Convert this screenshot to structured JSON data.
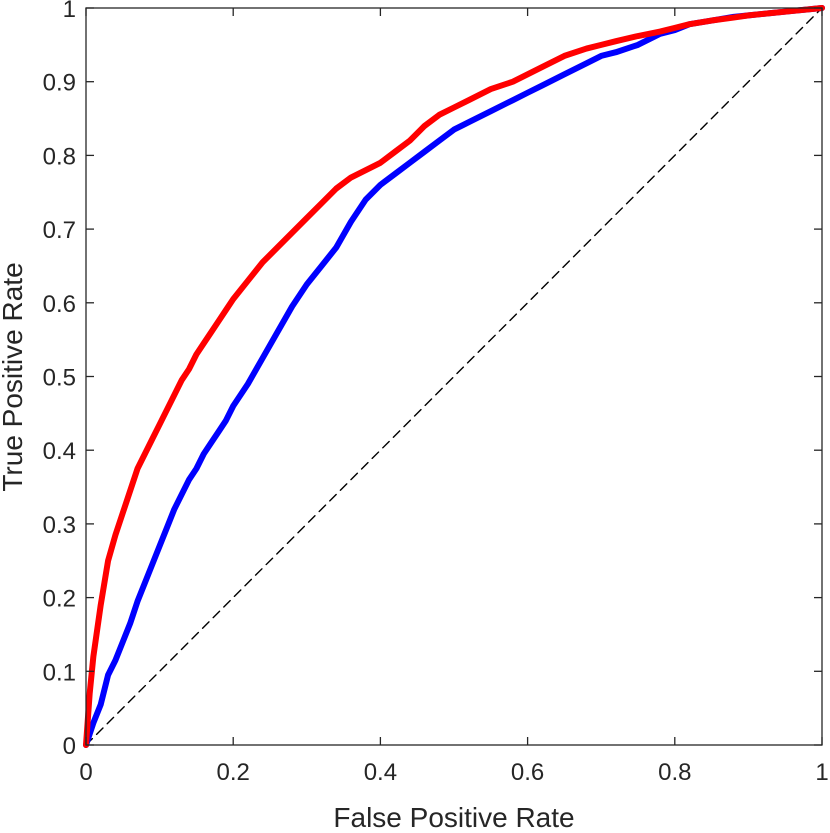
{
  "chart_data": {
    "type": "line",
    "title": "",
    "xlabel": "False Positive Rate",
    "ylabel": "True Positive Rate",
    "xlim": [
      0,
      1
    ],
    "ylim": [
      0,
      1
    ],
    "grid": false,
    "legend": "none",
    "x_ticks": [
      0,
      0.2,
      0.4,
      0.6,
      0.8,
      1
    ],
    "x_tick_labels": [
      "0",
      "0.2",
      "0.4",
      "0.6",
      "0.8",
      "1"
    ],
    "y_ticks": [
      0,
      0.1,
      0.2,
      0.3,
      0.4,
      0.5,
      0.6,
      0.7,
      0.8,
      0.9,
      1
    ],
    "y_tick_labels": [
      "0",
      "0.1",
      "0.2",
      "0.3",
      "0.4",
      "0.5",
      "0.6",
      "0.7",
      "0.8",
      "0.9",
      "1"
    ],
    "series": [
      {
        "name": "Blue ROC curve",
        "color": "#0000ff",
        "style": "solid",
        "x": [
          0,
          0.01,
          0.02,
          0.03,
          0.04,
          0.05,
          0.06,
          0.07,
          0.08,
          0.09,
          0.1,
          0.11,
          0.12,
          0.13,
          0.14,
          0.15,
          0.16,
          0.17,
          0.18,
          0.19,
          0.2,
          0.22,
          0.24,
          0.26,
          0.28,
          0.3,
          0.32,
          0.34,
          0.36,
          0.38,
          0.4,
          0.42,
          0.44,
          0.46,
          0.48,
          0.5,
          0.52,
          0.55,
          0.58,
          0.6,
          0.62,
          0.65,
          0.68,
          0.7,
          0.72,
          0.75,
          0.78,
          0.8,
          0.82,
          0.85,
          0.88,
          0.9,
          0.93,
          0.96,
          1.0
        ],
        "y": [
          0,
          0.03,
          0.055,
          0.095,
          0.115,
          0.14,
          0.165,
          0.195,
          0.22,
          0.245,
          0.27,
          0.295,
          0.32,
          0.34,
          0.36,
          0.375,
          0.395,
          0.41,
          0.425,
          0.44,
          0.46,
          0.49,
          0.525,
          0.56,
          0.595,
          0.625,
          0.65,
          0.675,
          0.71,
          0.74,
          0.76,
          0.775,
          0.79,
          0.805,
          0.82,
          0.835,
          0.845,
          0.86,
          0.875,
          0.885,
          0.895,
          0.91,
          0.925,
          0.935,
          0.94,
          0.95,
          0.965,
          0.97,
          0.978,
          0.983,
          0.988,
          0.99,
          0.993,
          0.996,
          1.0
        ]
      },
      {
        "name": "Red ROC curve",
        "color": "#ff0000",
        "style": "solid",
        "x": [
          0,
          0.005,
          0.01,
          0.02,
          0.03,
          0.04,
          0.05,
          0.06,
          0.07,
          0.08,
          0.09,
          0.1,
          0.11,
          0.12,
          0.13,
          0.14,
          0.15,
          0.16,
          0.17,
          0.18,
          0.19,
          0.2,
          0.22,
          0.24,
          0.26,
          0.28,
          0.3,
          0.32,
          0.34,
          0.36,
          0.38,
          0.4,
          0.42,
          0.44,
          0.46,
          0.48,
          0.5,
          0.52,
          0.55,
          0.58,
          0.6,
          0.62,
          0.65,
          0.68,
          0.7,
          0.72,
          0.75,
          0.78,
          0.8,
          0.82,
          0.85,
          0.88,
          0.9,
          0.93,
          0.96,
          1.0
        ],
        "y": [
          0,
          0.07,
          0.12,
          0.19,
          0.25,
          0.285,
          0.315,
          0.345,
          0.375,
          0.395,
          0.415,
          0.435,
          0.455,
          0.475,
          0.495,
          0.51,
          0.53,
          0.545,
          0.56,
          0.575,
          0.59,
          0.605,
          0.63,
          0.655,
          0.675,
          0.695,
          0.715,
          0.735,
          0.755,
          0.77,
          0.78,
          0.79,
          0.805,
          0.82,
          0.84,
          0.855,
          0.865,
          0.875,
          0.89,
          0.9,
          0.91,
          0.92,
          0.935,
          0.945,
          0.95,
          0.955,
          0.962,
          0.968,
          0.973,
          0.978,
          0.983,
          0.987,
          0.99,
          0.993,
          0.996,
          1.0
        ]
      },
      {
        "name": "Chance line",
        "color": "#000000",
        "style": "dashed",
        "x": [
          0,
          1
        ],
        "y": [
          0,
          1
        ]
      }
    ]
  }
}
